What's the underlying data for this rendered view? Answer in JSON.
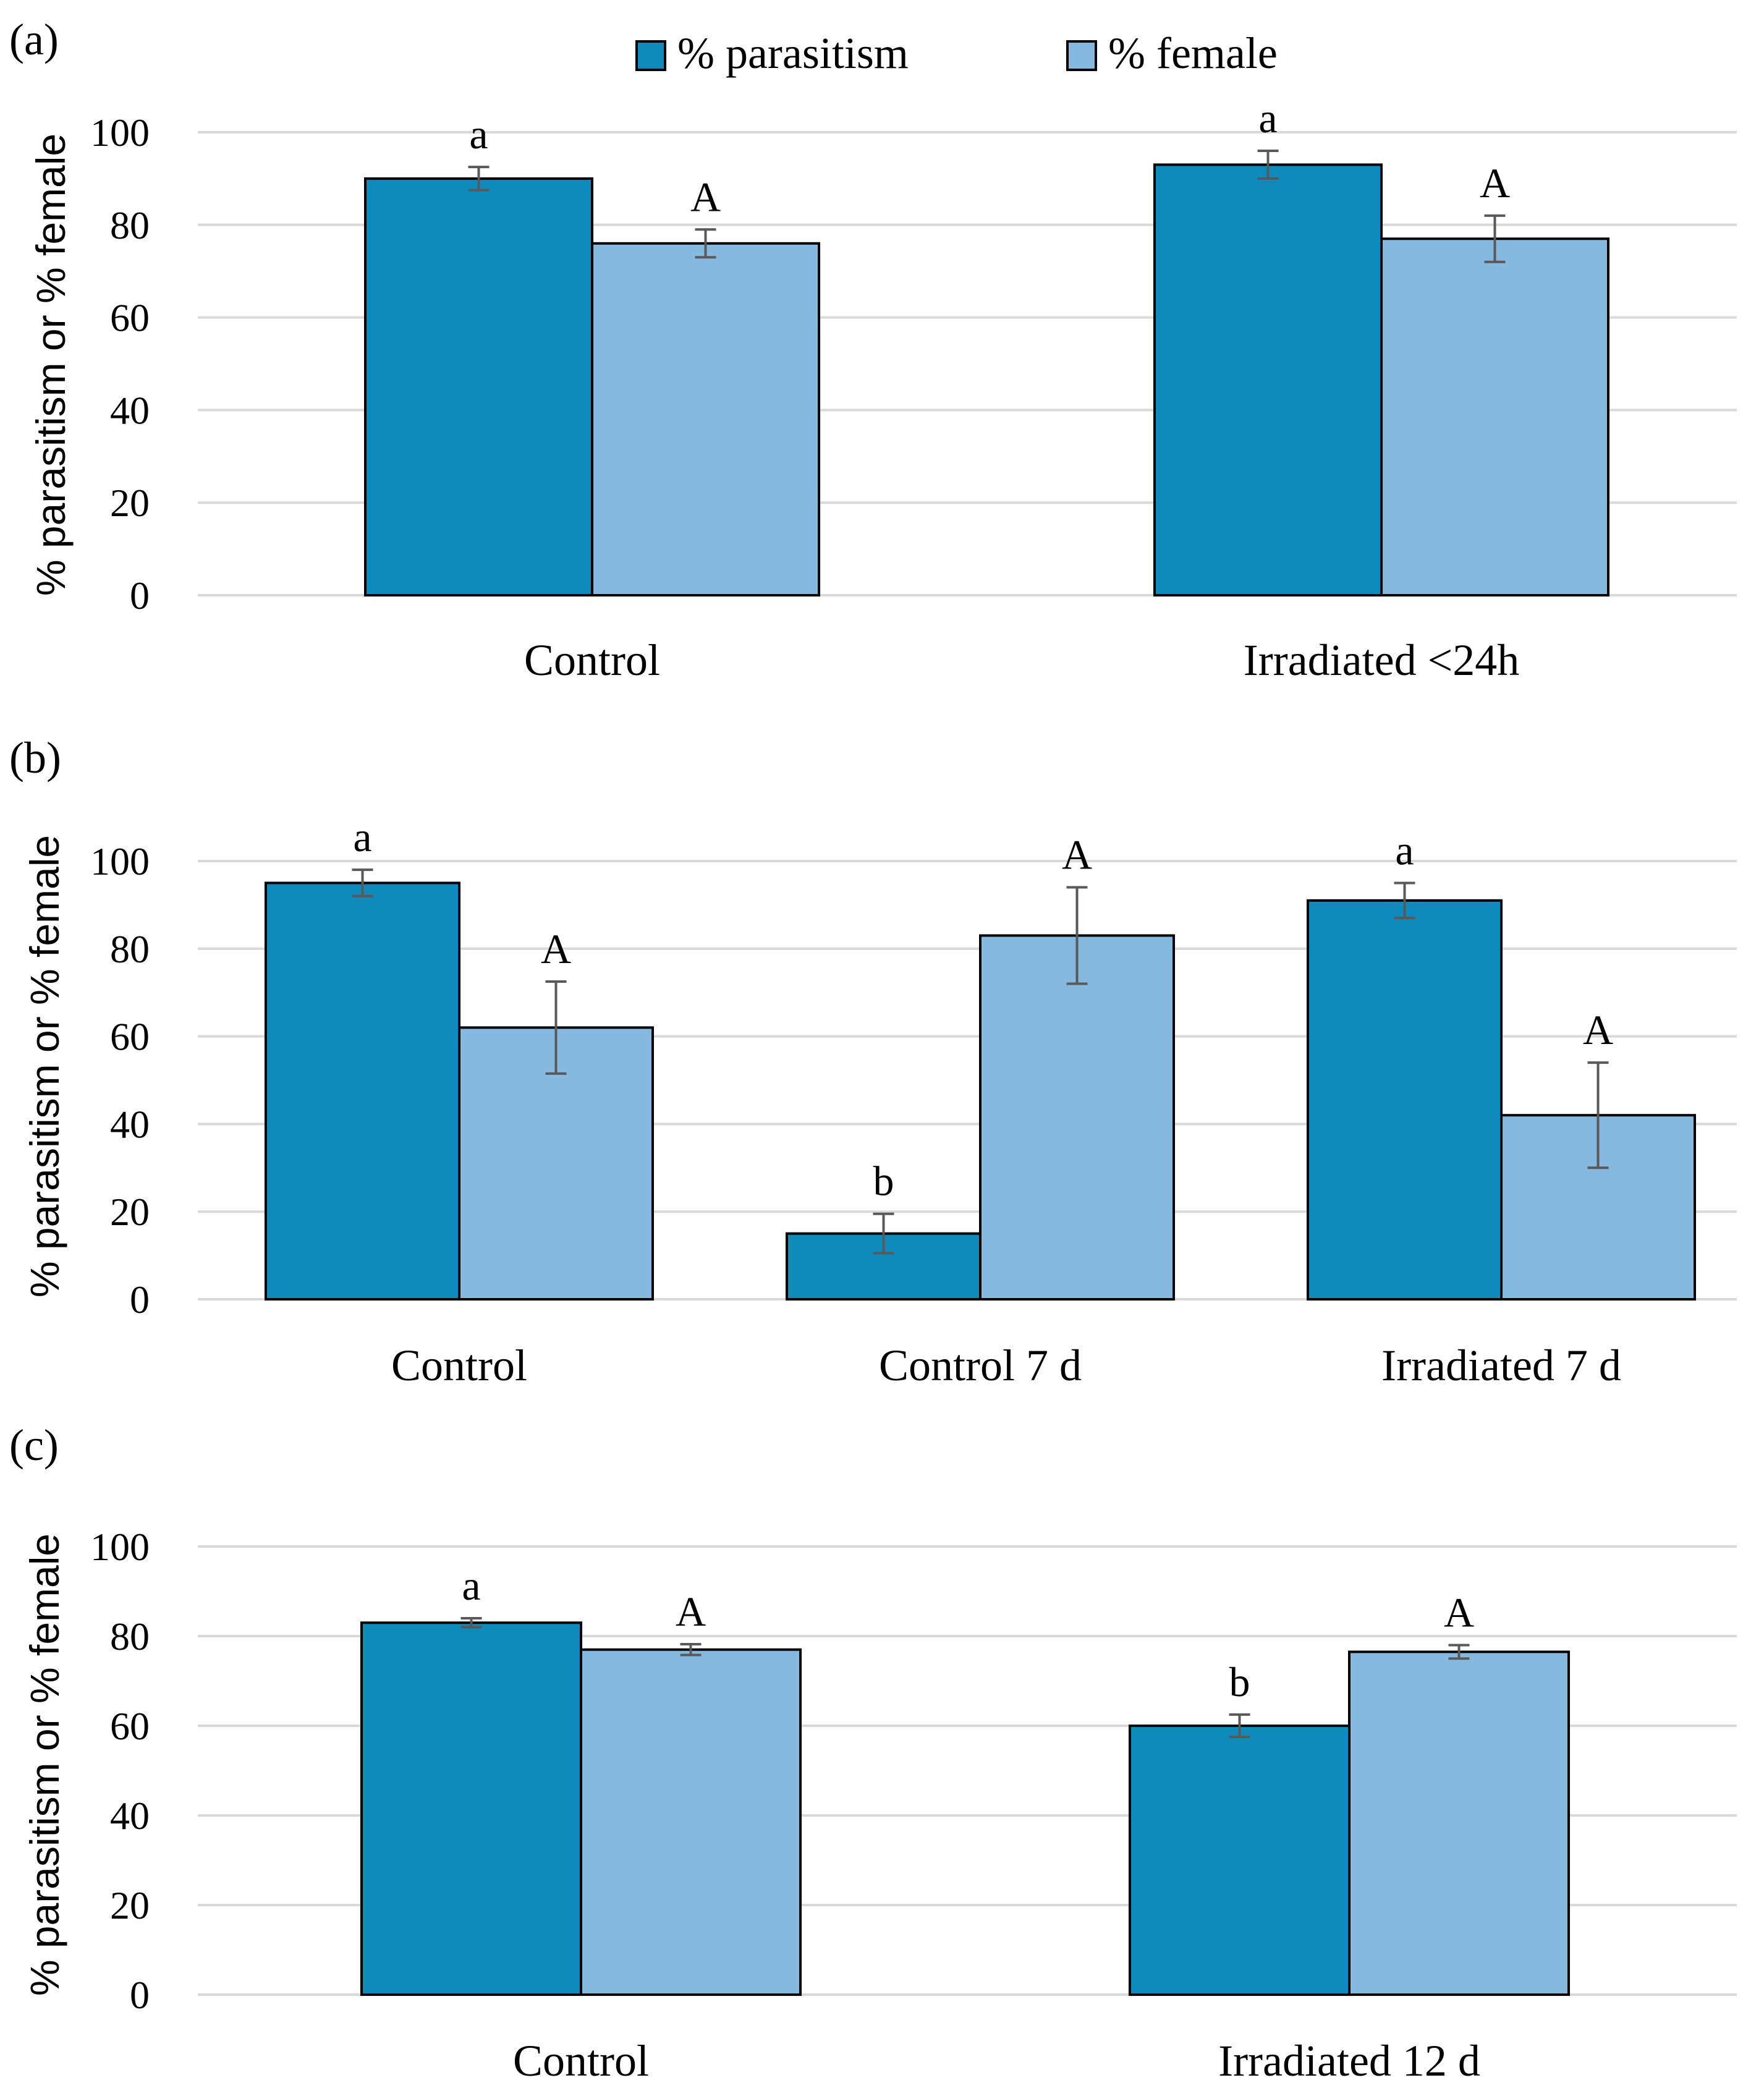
{
  "legend": [
    {
      "label": "% parasitism",
      "color": "#0f8abd"
    },
    {
      "label": "% female",
      "color": "#86b9e0"
    }
  ],
  "chart_data": [
    {
      "type": "bar",
      "panel": "(a)",
      "ylabel": "% parasitism or % female",
      "ylim": [
        0,
        100
      ],
      "yticks": [
        "0",
        "20",
        "40",
        "60",
        "80",
        "100"
      ],
      "categories": [
        "Control",
        "Irradiated <24h"
      ],
      "series": [
        {
          "name": "% parasitism",
          "values": [
            90,
            93
          ],
          "errors": [
            2.5,
            3
          ],
          "letters": [
            "a",
            "a"
          ]
        },
        {
          "name": "% female",
          "values": [
            76,
            77
          ],
          "errors": [
            3,
            5
          ],
          "letters": [
            "A",
            "A"
          ]
        }
      ]
    },
    {
      "type": "bar",
      "panel": "(b)",
      "ylabel": "% parasitism or % female",
      "ylim": [
        0,
        100
      ],
      "yticks": [
        "0",
        "20",
        "40",
        "60",
        "80",
        "100"
      ],
      "categories": [
        "Control",
        "Control 7 d",
        "Irradiated 7 d"
      ],
      "series": [
        {
          "name": "% parasitism",
          "values": [
            95,
            15,
            91
          ],
          "errors": [
            3,
            4.5,
            4
          ],
          "letters": [
            "a",
            "b",
            "a"
          ]
        },
        {
          "name": "% female",
          "values": [
            62,
            83,
            42
          ],
          "errors": [
            10.5,
            11,
            12
          ],
          "letters": [
            "A",
            "A",
            "A"
          ]
        }
      ]
    },
    {
      "type": "bar",
      "panel": "(c)",
      "ylabel": "% parasitism or % female",
      "ylim": [
        0,
        100
      ],
      "yticks": [
        "0",
        "20",
        "40",
        "60",
        "80",
        "100"
      ],
      "categories": [
        "Control",
        "Irradiated 12 d"
      ],
      "series": [
        {
          "name": "% parasitism",
          "values": [
            83,
            60
          ],
          "errors": [
            1,
            2.5
          ],
          "letters": [
            "a",
            "b"
          ]
        },
        {
          "name": "% female",
          "values": [
            77,
            76.5
          ],
          "errors": [
            1.2,
            1.5
          ],
          "letters": [
            "A",
            "A"
          ]
        }
      ]
    }
  ]
}
